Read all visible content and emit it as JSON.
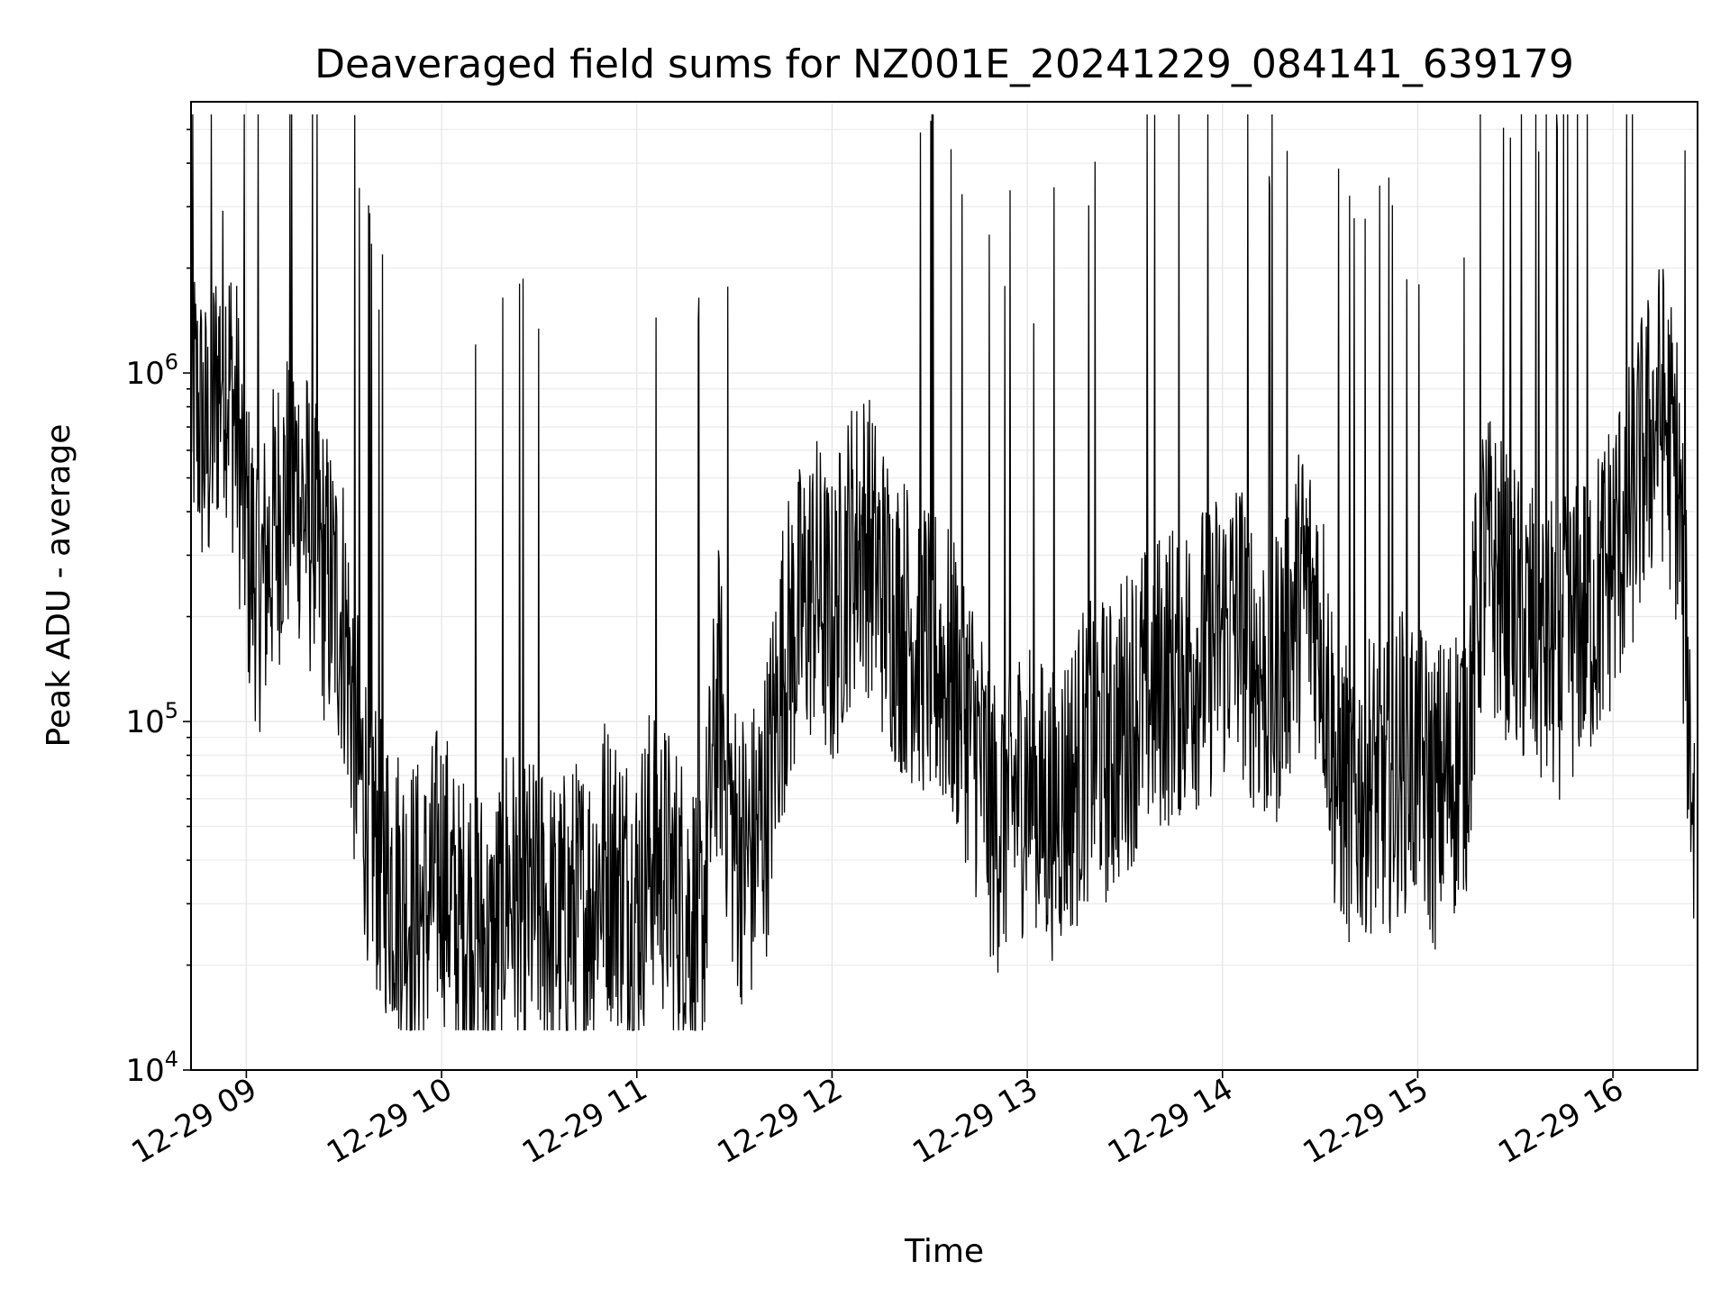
{
  "chart_data": {
    "type": "line",
    "title": "Deaveraged field sums for NZ001E_20241229_084141_639179",
    "xlabel": "Time",
    "ylabel": "Peak ADU - average",
    "yscale": "log",
    "xlim": [
      "2024-12-29 08:43",
      "2024-12-29 16:26"
    ],
    "ylim": [
      10000,
      6000000
    ],
    "x_ticks": [
      "12-29 09",
      "12-29 10",
      "12-29 11",
      "12-29 12",
      "12-29 13",
      "12-29 14",
      "12-29 15",
      "12-29 16"
    ],
    "y_ticks": [
      {
        "base": "10",
        "exp": "4",
        "value": 10000
      },
      {
        "base": "10",
        "exp": "5",
        "value": 100000
      },
      {
        "base": "10",
        "exp": "6",
        "value": 1000000
      }
    ],
    "grid": true,
    "line_color": "#000000",
    "series": [
      {
        "x": [
          "2024-12-29 08:43",
          "2024-12-29 08:48",
          "2024-12-29 08:53",
          "2024-12-29 08:57",
          "2024-12-29 09:01",
          "2024-12-29 09:05",
          "2024-12-29 09:10",
          "2024-12-29 09:15",
          "2024-12-29 09:20",
          "2024-12-29 09:25",
          "2024-12-29 09:30",
          "2024-12-29 09:35",
          "2024-12-29 09:40",
          "2024-12-29 09:45",
          "2024-12-29 09:50",
          "2024-12-29 09:55",
          "2024-12-29 10:00",
          "2024-12-29 10:05",
          "2024-12-29 10:10",
          "2024-12-29 10:15",
          "2024-12-29 10:20",
          "2024-12-29 10:25",
          "2024-12-29 10:30",
          "2024-12-29 10:35",
          "2024-12-29 10:40",
          "2024-12-29 10:45",
          "2024-12-29 10:50",
          "2024-12-29 10:55",
          "2024-12-29 11:00",
          "2024-12-29 11:05",
          "2024-12-29 11:10",
          "2024-12-29 11:15",
          "2024-12-29 11:20",
          "2024-12-29 11:25",
          "2024-12-29 11:30",
          "2024-12-29 11:35",
          "2024-12-29 11:40",
          "2024-12-29 11:45",
          "2024-12-29 11:50",
          "2024-12-29 11:55",
          "2024-12-29 12:00",
          "2024-12-29 12:05",
          "2024-12-29 12:10",
          "2024-12-29 12:15",
          "2024-12-29 12:20",
          "2024-12-29 12:25",
          "2024-12-29 12:30",
          "2024-12-29 12:35",
          "2024-12-29 12:40",
          "2024-12-29 12:45",
          "2024-12-29 12:50",
          "2024-12-29 12:55",
          "2024-12-29 13:00",
          "2024-12-29 13:05",
          "2024-12-29 13:10",
          "2024-12-29 13:15",
          "2024-12-29 13:20",
          "2024-12-29 13:25",
          "2024-12-29 13:30",
          "2024-12-29 13:35",
          "2024-12-29 13:40",
          "2024-12-29 13:45",
          "2024-12-29 13:50",
          "2024-12-29 13:55",
          "2024-12-29 14:00",
          "2024-12-29 14:05",
          "2024-12-29 14:10",
          "2024-12-29 14:15",
          "2024-12-29 14:20",
          "2024-12-29 14:25",
          "2024-12-29 14:30",
          "2024-12-29 14:35",
          "2024-12-29 14:40",
          "2024-12-29 14:45",
          "2024-12-29 14:50",
          "2024-12-29 14:55",
          "2024-12-29 15:00",
          "2024-12-29 15:05",
          "2024-12-29 15:10",
          "2024-12-29 15:15",
          "2024-12-29 15:20",
          "2024-12-29 15:25",
          "2024-12-29 15:30",
          "2024-12-29 15:35",
          "2024-12-29 15:40",
          "2024-12-29 15:45",
          "2024-12-29 15:50",
          "2024-12-29 15:55",
          "2024-12-29 16:00",
          "2024-12-29 16:05",
          "2024-12-29 16:10",
          "2024-12-29 16:15",
          "2024-12-29 16:20",
          "2024-12-29 16:25"
        ],
        "y": [
          900000,
          600000,
          1200000,
          700000,
          300000,
          250000,
          400000,
          500000,
          350000,
          250000,
          200000,
          70000,
          45000,
          35000,
          30000,
          28000,
          40000,
          25000,
          30000,
          20000,
          35000,
          28000,
          30000,
          25000,
          28000,
          30000,
          40000,
          35000,
          30000,
          45000,
          35000,
          30000,
          25000,
          120000,
          45000,
          40000,
          60000,
          150000,
          200000,
          250000,
          180000,
          300000,
          350000,
          250000,
          200000,
          180000,
          160000,
          140000,
          120000,
          80000,
          50000,
          60000,
          70000,
          55000,
          60000,
          70000,
          90000,
          80000,
          100000,
          120000,
          130000,
          140000,
          150000,
          160000,
          180000,
          200000,
          150000,
          120000,
          180000,
          250000,
          200000,
          70000,
          60000,
          70000,
          65000,
          80000,
          75000,
          60000,
          70000,
          90000,
          300000,
          250000,
          200000,
          180000,
          160000,
          170000,
          200000,
          220000,
          300000,
          400000,
          600000,
          800000,
          500000,
          50000
        ]
      }
    ]
  }
}
